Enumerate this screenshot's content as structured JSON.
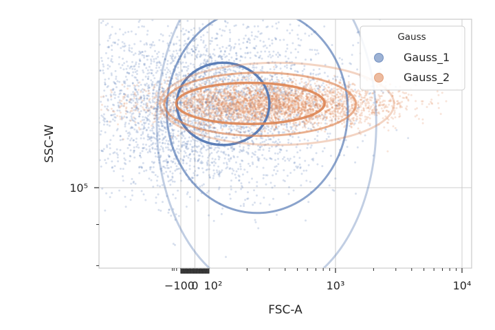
{
  "chart_data": {
    "type": "scatter",
    "title": "",
    "xlabel": "FSC-A",
    "ylabel": "SSC-W",
    "x_scale": "symlog",
    "y_scale": "log",
    "x_tick_labels": [
      "−100",
      "0",
      "10²",
      "10³",
      "10⁴"
    ],
    "y_tick_labels": [
      "10⁵"
    ],
    "xlim": [
      -500,
      22000
    ],
    "ylim": [
      68000,
      190000
    ],
    "grid": true,
    "legend": {
      "title": "Gauss",
      "placement": "top-right",
      "entries": [
        "Gauss_1",
        "Gauss_2"
      ]
    },
    "series": [
      {
        "name": "Gauss_1",
        "color": "#4c72b0",
        "marker": "circle",
        "approx_points": 6000,
        "center": [
          50,
          127000
        ],
        "contours": [
          {
            "level": "1-sigma",
            "x_range": [
              -190,
              300
            ],
            "y_range": [
              113000,
              143000
            ]
          },
          {
            "level": "2-sigma",
            "x_range": [
              -1000,
              1250
            ],
            "y_range": [
              93000,
              167000
            ]
          },
          {
            "level": "3-sigma",
            "x_range": [
              -5000,
              2100
            ],
            "y_range": [
              74000,
              195000
            ]
          }
        ]
      },
      {
        "name": "Gauss_2",
        "color": "#dd8452",
        "marker": "circle",
        "approx_points": 6000,
        "center": [
          300,
          127000
        ],
        "contours": [
          {
            "level": "1-sigma",
            "x_range": [
              -210,
              820
            ],
            "y_range": [
              120000,
              135000
            ]
          },
          {
            "level": "2-sigma",
            "x_range": [
              -1500,
              1450
            ],
            "y_range": [
              116000,
              139000
            ]
          },
          {
            "level": "3-sigma",
            "x_range": [
              -3000,
              2900
            ],
            "y_range": [
              113000,
              143000
            ]
          }
        ]
      }
    ]
  }
}
